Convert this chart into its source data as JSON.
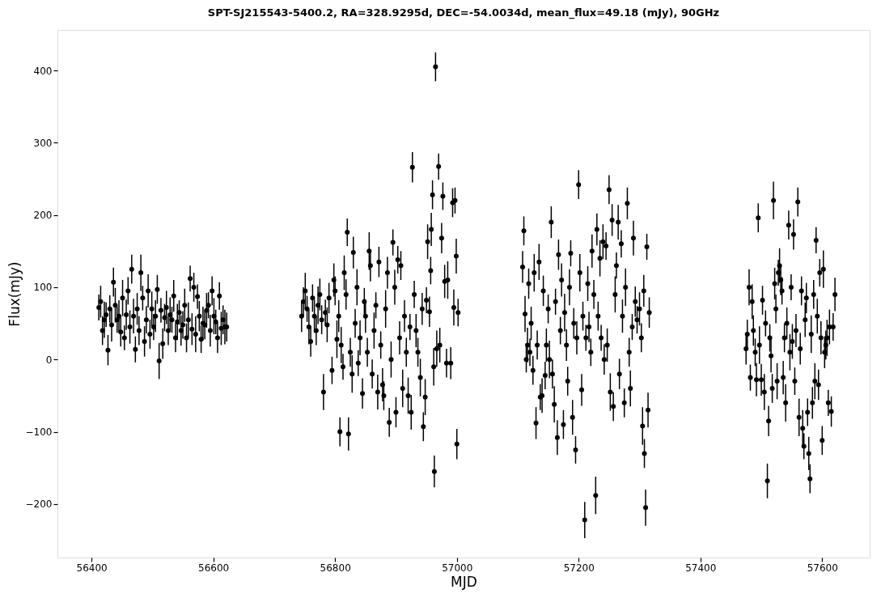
{
  "chart_data": {
    "type": "scatter",
    "title": "SPT-SJ215543-5400.2, RA=328.9295d, DEC=-54.0034d, mean_flux=49.18 (mJy), 90GHz",
    "xlabel": "MJD",
    "ylabel": "Flux(mJy)",
    "xlim": [
      56344,
      57678
    ],
    "xticks": [
      56400,
      56600,
      56800,
      57000,
      57200,
      57400,
      57600
    ],
    "ylim": [
      -274,
      456
    ],
    "yticks": [
      -200,
      -100,
      0,
      100,
      200,
      300,
      400
    ],
    "grid": false,
    "marker": "circle",
    "series": [
      {
        "color": "#000000",
        "x": [
          56412,
          56415,
          56418,
          56421,
          56424,
          56427,
          56430,
          56433,
          56436,
          56439,
          56442,
          56445,
          56448,
          56451,
          56454,
          56457,
          56460,
          56463,
          56466,
          56469,
          56472,
          56475,
          56478,
          56481,
          56484,
          56487,
          56490,
          56493,
          56496,
          56499,
          56502,
          56505,
          56508,
          56511,
          56514,
          56517,
          56520,
          56523,
          56526,
          56529,
          56532,
          56535,
          56538,
          56541,
          56544,
          56547,
          56550,
          56553,
          56556,
          56559,
          56562,
          56565,
          56568,
          56571,
          56574,
          56577,
          56580,
          56583,
          56586,
          56589,
          56592,
          56595,
          56598,
          56601,
          56604,
          56607,
          56610,
          56613,
          56616,
          56619,
          56622,
          56745,
          56748,
          56751,
          56754,
          56757,
          56760,
          56763,
          56766,
          56769,
          56772,
          56775,
          56778,
          56781,
          56784,
          56787,
          56790,
          56795,
          56798,
          56800,
          56803,
          56806,
          56808,
          56810,
          56813,
          56815,
          56818,
          56820,
          56822,
          56825,
          56828,
          56830,
          56833,
          56836,
          56838,
          56841,
          56845,
          56848,
          56850,
          56853,
          56856,
          56858,
          56861,
          56864,
          56867,
          56870,
          56872,
          56875,
          56878,
          56880,
          56883,
          56886,
          56889,
          56892,
          56895,
          56898,
          56900,
          56903,
          56906,
          56908,
          56911,
          56914,
          56917,
          56920,
          56923,
          56925,
          56927,
          56930,
          56933,
          56936,
          56940,
          56943,
          56945,
          56948,
          56950,
          56952,
          56955,
          56957,
          56958,
          56960,
          56962,
          56963,
          56965,
          56967,
          56970,
          56972,
          56975,
          56977,
          56980,
          56983,
          56985,
          56990,
          56993,
          56995,
          56997,
          56999,
          57000,
          57002,
          57108,
          57110,
          57112,
          57114,
          57116,
          57118,
          57120,
          57122,
          57125,
          57127,
          57130,
          57132,
          57135,
          57137,
          57140,
          57142,
          57145,
          57147,
          57150,
          57152,
          57155,
          57157,
          57160,
          57162,
          57165,
          57167,
          57170,
          57172,
          57175,
          57177,
          57180,
          57182,
          57185,
          57187,
          57190,
          57192,
          57195,
          57197,
          57200,
          57202,
          57205,
          57207,
          57210,
          57212,
          57215,
          57217,
          57220,
          57222,
          57225,
          57228,
          57230,
          57232,
          57235,
          57237,
          57240,
          57242,
          57245,
          57247,
          57250,
          57252,
          57255,
          57257,
          57260,
          57262,
          57265,
          57267,
          57270,
          57272,
          57275,
          57277,
          57280,
          57283,
          57285,
          57288,
          57290,
          57293,
          57296,
          57300,
          57303,
          57305,
          57307,
          57308,
          57310,
          57312,
          57314,
          57316,
          57475,
          57477,
          57480,
          57482,
          57485,
          57487,
          57490,
          57492,
          57495,
          57497,
          57500,
          57502,
          57505,
          57507,
          57510,
          57512,
          57514,
          57516,
          57518,
          57520,
          57522,
          57524,
          57526,
          57528,
          57530,
          57532,
          57534,
          57536,
          57538,
          57540,
          57542,
          57545,
          57547,
          57549,
          57551,
          57553,
          57555,
          57557,
          57560,
          57562,
          57564,
          57566,
          57568,
          57570,
          57572,
          57574,
          57576,
          57578,
          57580,
          57582,
          57584,
          57586,
          57588,
          57590,
          57592,
          57594,
          57596,
          57598,
          57600,
          57602,
          57604,
          57606,
          57608,
          57610,
          57612,
          57615,
          57618,
          57621
        ],
        "values": [
          72,
          80,
          40,
          55,
          62,
          13,
          70,
          48,
          107,
          75,
          55,
          60,
          38,
          85,
          30,
          62,
          95,
          45,
          125,
          60,
          14,
          70,
          40,
          120,
          85,
          25,
          55,
          95,
          35,
          70,
          45,
          60,
          97,
          -2,
          68,
          22,
          58,
          72,
          40,
          62,
          55,
          88,
          30,
          52,
          65,
          40,
          48,
          75,
          30,
          55,
          112,
          42,
          100,
          35,
          87,
          60,
          28,
          50,
          48,
          68,
          75,
          40,
          95,
          60,
          52,
          30,
          88,
          43,
          55,
          45,
          45,
          60,
          80,
          95,
          70,
          45,
          25,
          85,
          60,
          40,
          75,
          90,
          55,
          -45,
          65,
          48,
          85,
          -15,
          110,
          95,
          28,
          60,
          -100,
          20,
          -10,
          120,
          90,
          176,
          -103,
          10,
          -20,
          148,
          50,
          100,
          -5,
          30,
          -47,
          80,
          60,
          10,
          150,
          130,
          -20,
          40,
          75,
          -45,
          135,
          20,
          -35,
          -50,
          70,
          120,
          -87,
          0,
          162,
          100,
          -73,
          138,
          30,
          130,
          -40,
          60,
          10,
          -50,
          45,
          -73,
          266,
          90,
          40,
          10,
          -25,
          70,
          -93,
          -52,
          82,
          163,
          66,
          123,
          180,
          228,
          -10,
          -155,
          405,
          15,
          267,
          20,
          168,
          226,
          108,
          -5,
          110,
          -5,
          217,
          72,
          220,
          143,
          -117,
          65,
          128,
          178,
          63,
          0,
          20,
          105,
          10,
          50,
          -15,
          120,
          -88,
          20,
          135,
          -52,
          -50,
          95,
          -22,
          20,
          70,
          0,
          190,
          -20,
          -62,
          80,
          -108,
          145,
          40,
          110,
          -90,
          65,
          20,
          -30,
          100,
          147,
          -80,
          50,
          -125,
          30,
          242,
          120,
          -42,
          60,
          -222,
          30,
          105,
          45,
          10,
          150,
          90,
          -188,
          180,
          60,
          140,
          30,
          163,
          0,
          157,
          20,
          235,
          -45,
          193,
          -65,
          90,
          130,
          190,
          -20,
          160,
          60,
          -60,
          100,
          216,
          10,
          -40,
          45,
          168,
          80,
          55,
          70,
          30,
          -92,
          95,
          -130,
          -205,
          156,
          -70,
          65,
          15,
          35,
          100,
          -25,
          80,
          40,
          10,
          -28,
          196,
          20,
          -28,
          82,
          -45,
          50,
          -168,
          -85,
          30,
          5,
          -40,
          220,
          105,
          70,
          -30,
          120,
          130,
          110,
          95,
          -25,
          30,
          -60,
          50,
          186,
          10,
          100,
          25,
          173,
          -30,
          40,
          218,
          -80,
          15,
          95,
          -95,
          -120,
          55,
          85,
          -73,
          -130,
          -165,
          35,
          -60,
          90,
          -30,
          165,
          60,
          -35,
          120,
          30,
          -112,
          125,
          10,
          20,
          30,
          -60,
          45,
          -72,
          45,
          90
        ],
        "errors": [
          18,
          22,
          20,
          25,
          17,
          21,
          19,
          23,
          20,
          24,
          18,
          22,
          20,
          25,
          17,
          21,
          19,
          23,
          20,
          24,
          18,
          22,
          20,
          25,
          17,
          21,
          19,
          23,
          20,
          24,
          18,
          22,
          20,
          25,
          17,
          21,
          19,
          23,
          20,
          24,
          18,
          22,
          20,
          25,
          17,
          21,
          19,
          23,
          20,
          24,
          18,
          22,
          20,
          25,
          17,
          21,
          19,
          23,
          20,
          24,
          18,
          22,
          20,
          25,
          17,
          21,
          19,
          23,
          20,
          24,
          20,
          22,
          20,
          25,
          18,
          24,
          21,
          19,
          23,
          20,
          26,
          22,
          20,
          25,
          18,
          24,
          21,
          19,
          23,
          20,
          26,
          22,
          20,
          25,
          18,
          24,
          21,
          19,
          23,
          20,
          26,
          22,
          20,
          25,
          18,
          24,
          21,
          19,
          23,
          20,
          26,
          22,
          20,
          25,
          18,
          24,
          21,
          19,
          23,
          20,
          26,
          22,
          20,
          25,
          18,
          24,
          21,
          19,
          23,
          20,
          26,
          22,
          20,
          25,
          18,
          24,
          21,
          19,
          23,
          20,
          26,
          22,
          20,
          25,
          18,
          24,
          21,
          19,
          23,
          20,
          26,
          22,
          20,
          25,
          18,
          24,
          21,
          19,
          23,
          20,
          26,
          22,
          20,
          25,
          18,
          24,
          21,
          19,
          22,
          20,
          25,
          18,
          24,
          21,
          19,
          23,
          20,
          26,
          22,
          20,
          25,
          18,
          24,
          21,
          19,
          23,
          20,
          26,
          22,
          20,
          25,
          18,
          24,
          21,
          19,
          23,
          20,
          26,
          22,
          20,
          25,
          18,
          24,
          21,
          19,
          23,
          20,
          26,
          22,
          20,
          25,
          18,
          24,
          21,
          19,
          23,
          20,
          26,
          22,
          20,
          25,
          18,
          24,
          21,
          19,
          23,
          20,
          26,
          22,
          20,
          25,
          18,
          24,
          21,
          19,
          23,
          20,
          26,
          22,
          20,
          25,
          18,
          24,
          21,
          19,
          23,
          20,
          26,
          22,
          20,
          25,
          18,
          24,
          21,
          22,
          20,
          25,
          18,
          24,
          21,
          19,
          23,
          20,
          26,
          22,
          20,
          25,
          18,
          24,
          21,
          19,
          23,
          20,
          26,
          22,
          20,
          25,
          18,
          24,
          21,
          19,
          23,
          20,
          26,
          22,
          20,
          25,
          18,
          24,
          21,
          19,
          23,
          20,
          26,
          22,
          20,
          25,
          18,
          24,
          21,
          19,
          23,
          20,
          26,
          22,
          20,
          25,
          18,
          24,
          21,
          19,
          23,
          20,
          26,
          22,
          20,
          25,
          18,
          24,
          21,
          19,
          23
        ]
      }
    ]
  }
}
